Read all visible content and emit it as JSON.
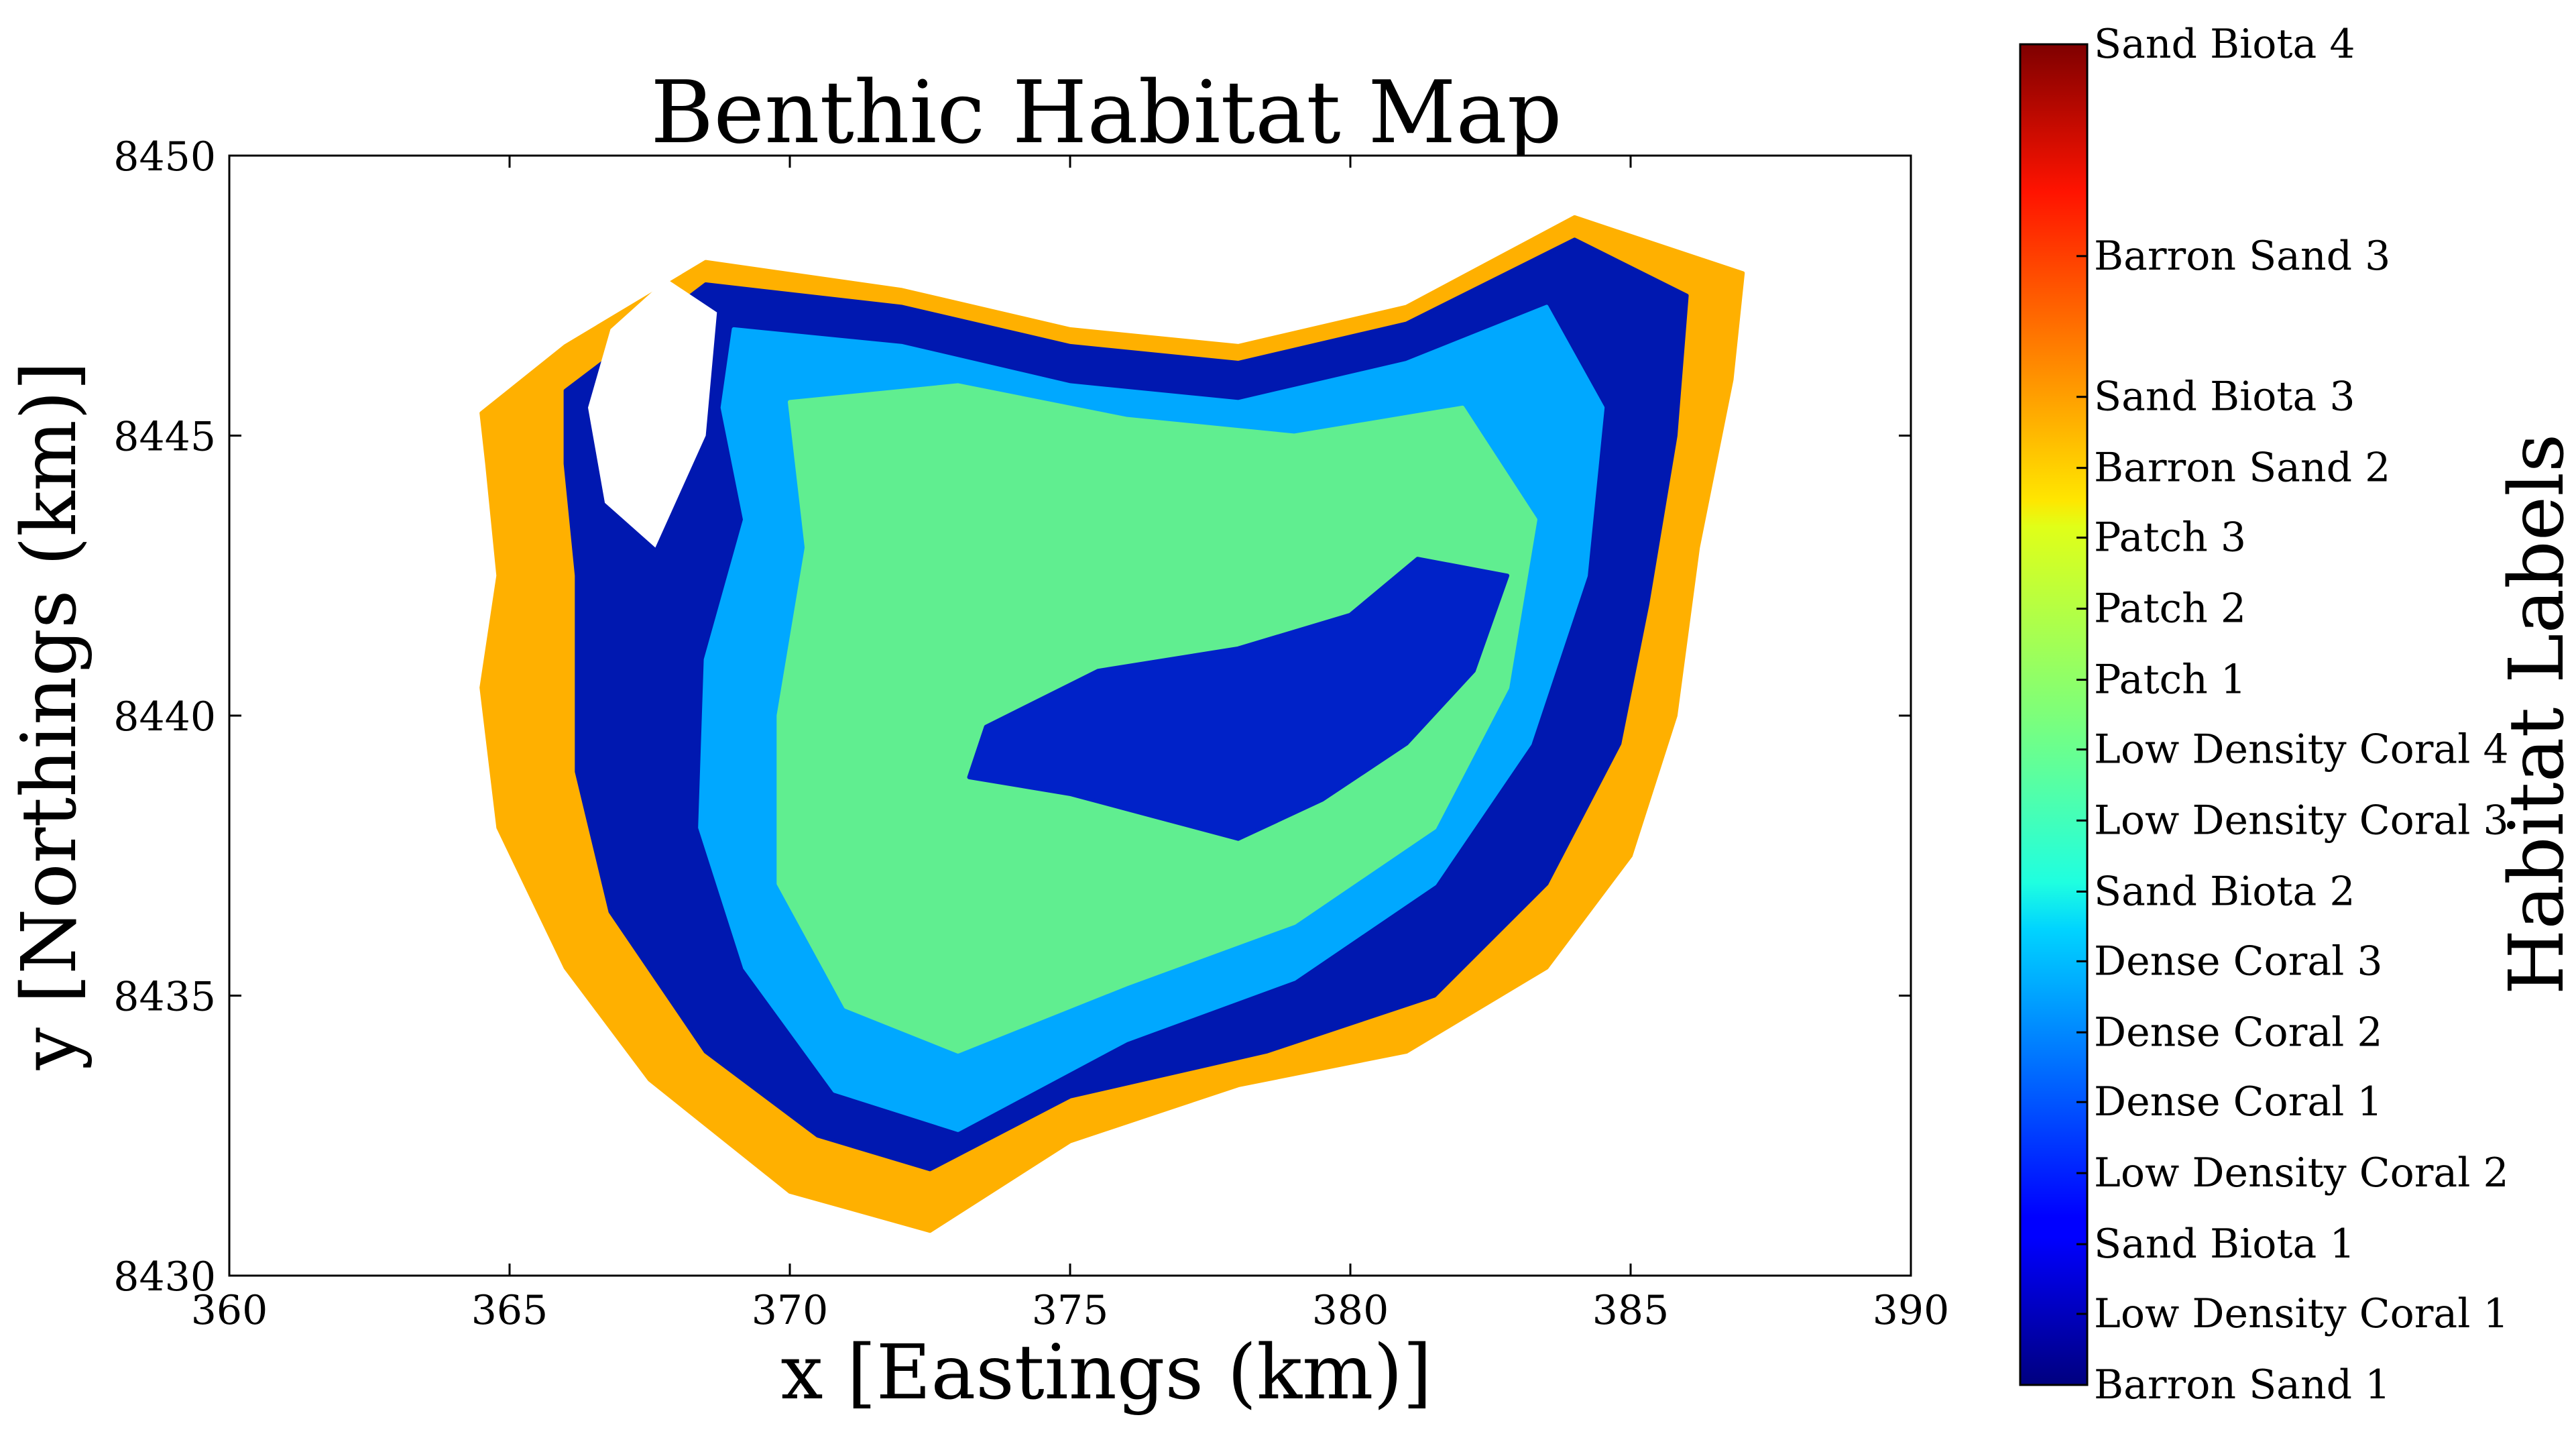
{
  "chart_data": {
    "type": "scatter",
    "title": "Benthic Habitat Map",
    "xlabel": "x [Eastings (km)]",
    "ylabel": "y [Northings (km)]",
    "xlim": [
      360,
      390
    ],
    "ylim": [
      8430,
      8450
    ],
    "xticks": [
      "360",
      "365",
      "370",
      "375",
      "380",
      "385",
      "390"
    ],
    "yticks": [
      "8430",
      "8435",
      "8440",
      "8445",
      "8450"
    ],
    "colorbar": {
      "title": "Habitat Labels",
      "colormap": "jet",
      "labels": [
        {
          "text": "Barron Sand 1",
          "level": 0.0
        },
        {
          "text": "Low Density Coral 1",
          "level": 0.053
        },
        {
          "text": "Sand Biota 1",
          "level": 0.105
        },
        {
          "text": "Low Density Coral 2",
          "level": 0.158
        },
        {
          "text": "Dense Coral 1",
          "level": 0.211
        },
        {
          "text": "Dense Coral 2",
          "level": 0.263
        },
        {
          "text": "Dense Coral 3",
          "level": 0.316
        },
        {
          "text": "Sand Biota 2",
          "level": 0.368
        },
        {
          "text": "Low Density Coral 3",
          "level": 0.421
        },
        {
          "text": "Low Density Coral 4",
          "level": 0.474
        },
        {
          "text": "Patch 1",
          "level": 0.526
        },
        {
          "text": "Patch 2",
          "level": 0.579
        },
        {
          "text": "Patch 3",
          "level": 0.632
        },
        {
          "text": "Barron Sand 2",
          "level": 0.684
        },
        {
          "text": "Sand Biota 3",
          "level": 0.737
        },
        {
          "text": "Barron Sand 3",
          "level": 0.842
        },
        {
          "text": "Sand Biota 4",
          "level": 1.0
        }
      ]
    },
    "regions": [
      {
        "name": "outer-sand-fringe",
        "color": "#ffb000",
        "points": [
          [
            364.5,
            8445.4
          ],
          [
            366.0,
            8446.6
          ],
          [
            368.5,
            8448.1
          ],
          [
            372.0,
            8447.6
          ],
          [
            375.0,
            8446.9
          ],
          [
            378.0,
            8446.6
          ],
          [
            381.0,
            8447.3
          ],
          [
            384.0,
            8448.9
          ],
          [
            387.0,
            8447.9
          ],
          [
            386.8,
            8446.0
          ],
          [
            386.2,
            8443.0
          ],
          [
            385.8,
            8440.0
          ],
          [
            385.0,
            8437.5
          ],
          [
            383.5,
            8435.5
          ],
          [
            381.0,
            8434.0
          ],
          [
            378.0,
            8433.4
          ],
          [
            375.0,
            8432.4
          ],
          [
            372.5,
            8430.8
          ],
          [
            370.0,
            8431.5
          ],
          [
            367.5,
            8433.5
          ],
          [
            366.0,
            8435.5
          ],
          [
            364.8,
            8438.0
          ],
          [
            364.5,
            8440.5
          ],
          [
            364.8,
            8442.5
          ],
          [
            364.6,
            8444.5
          ]
        ]
      },
      {
        "name": "dense-low-density-ring",
        "color": "#0018b0",
        "points": [
          [
            366.0,
            8445.8
          ],
          [
            368.5,
            8447.7
          ],
          [
            372.0,
            8447.3
          ],
          [
            375.0,
            8446.6
          ],
          [
            378.0,
            8446.3
          ],
          [
            381.0,
            8447.0
          ],
          [
            384.0,
            8448.5
          ],
          [
            386.0,
            8447.5
          ],
          [
            385.8,
            8445.0
          ],
          [
            385.3,
            8442.0
          ],
          [
            384.8,
            8439.5
          ],
          [
            383.5,
            8437.0
          ],
          [
            381.5,
            8435.0
          ],
          [
            378.5,
            8434.0
          ],
          [
            375.0,
            8433.2
          ],
          [
            372.5,
            8431.9
          ],
          [
            370.5,
            8432.5
          ],
          [
            368.5,
            8434.0
          ],
          [
            366.8,
            8436.5
          ],
          [
            366.2,
            8439.0
          ],
          [
            366.2,
            8442.5
          ],
          [
            366.0,
            8444.5
          ]
        ]
      },
      {
        "name": "dense-coral-band",
        "color": "#00a8ff",
        "points": [
          [
            369.0,
            8446.9
          ],
          [
            372.0,
            8446.6
          ],
          [
            375.0,
            8445.9
          ],
          [
            378.0,
            8445.6
          ],
          [
            381.0,
            8446.3
          ],
          [
            383.5,
            8447.3
          ],
          [
            384.5,
            8445.5
          ],
          [
            384.2,
            8442.5
          ],
          [
            383.2,
            8439.5
          ],
          [
            381.5,
            8437.0
          ],
          [
            379.0,
            8435.3
          ],
          [
            376.0,
            8434.2
          ],
          [
            373.0,
            8432.6
          ],
          [
            370.8,
            8433.3
          ],
          [
            369.2,
            8435.5
          ],
          [
            368.4,
            8438.0
          ],
          [
            368.5,
            8441.0
          ],
          [
            369.2,
            8443.5
          ],
          [
            368.8,
            8445.5
          ]
        ]
      },
      {
        "name": "lagoon-patch",
        "color": "#60ee90",
        "points": [
          [
            370.0,
            8445.6
          ],
          [
            373.0,
            8445.9
          ],
          [
            376.0,
            8445.3
          ],
          [
            379.0,
            8445.0
          ],
          [
            382.0,
            8445.5
          ],
          [
            383.3,
            8443.5
          ],
          [
            382.8,
            8440.5
          ],
          [
            381.5,
            8438.0
          ],
          [
            379.0,
            8436.3
          ],
          [
            376.0,
            8435.2
          ],
          [
            373.0,
            8434.0
          ],
          [
            371.0,
            8434.8
          ],
          [
            369.8,
            8437.0
          ],
          [
            369.8,
            8440.0
          ],
          [
            370.3,
            8443.0
          ]
        ]
      },
      {
        "name": "inner-low-density-core",
        "color": "#0022c8",
        "points": [
          [
            373.5,
            8439.8
          ],
          [
            375.5,
            8440.8
          ],
          [
            378.0,
            8441.2
          ],
          [
            380.0,
            8441.8
          ],
          [
            381.2,
            8442.8
          ],
          [
            382.8,
            8442.5
          ],
          [
            382.2,
            8440.8
          ],
          [
            381.0,
            8439.5
          ],
          [
            379.5,
            8438.5
          ],
          [
            378.0,
            8437.8
          ],
          [
            376.5,
            8438.2
          ],
          [
            375.0,
            8438.6
          ],
          [
            373.2,
            8438.9
          ]
        ]
      }
    ],
    "voids": [
      {
        "name": "northwest-gap",
        "points": [
          [
            366.8,
            8446.9
          ],
          [
            367.8,
            8447.8
          ],
          [
            368.7,
            8447.2
          ],
          [
            368.5,
            8445.0
          ],
          [
            367.6,
            8443.0
          ],
          [
            366.7,
            8443.8
          ],
          [
            366.4,
            8445.5
          ]
        ]
      }
    ]
  }
}
